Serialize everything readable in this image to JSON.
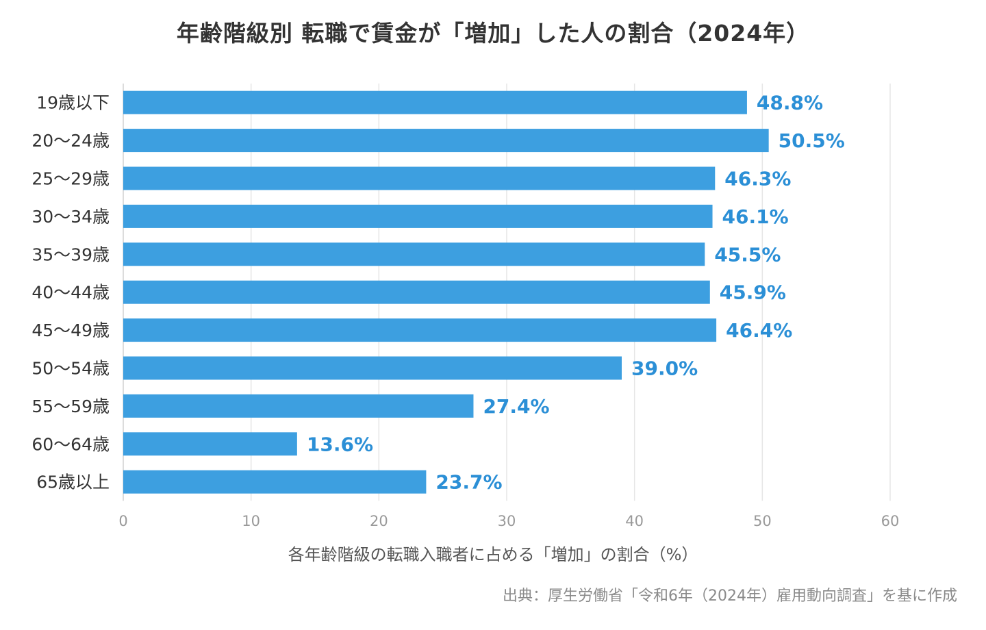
{
  "chart_data": {
    "type": "bar",
    "orientation": "horizontal",
    "title": "年齢階級別 転職で賃金が「増加」した人の割合（2024年）",
    "xlabel": "各年齢階級の転職入職者に占める「増加」の割合（%）",
    "ylabel": "",
    "source": "出典：厚生労働省「令和6年（2024年）雇用動向調査」を基に作成",
    "categories": [
      "19歳以下",
      "20〜24歳",
      "25〜29歳",
      "30〜34歳",
      "35〜39歳",
      "40〜44歳",
      "45〜49歳",
      "50〜54歳",
      "55〜59歳",
      "60〜64歳",
      "65歳以上"
    ],
    "values": [
      48.8,
      50.5,
      46.3,
      46.1,
      45.5,
      45.9,
      46.4,
      39.0,
      27.4,
      13.6,
      23.7
    ],
    "value_labels": [
      "48.8%",
      "50.5%",
      "46.3%",
      "46.1%",
      "45.5%",
      "45.9%",
      "46.4%",
      "39.0%",
      "27.4%",
      "13.6%",
      "23.7%"
    ],
    "xticks": [
      "0",
      "10",
      "20",
      "30",
      "40",
      "50",
      "60"
    ],
    "xlim": [
      0,
      60
    ],
    "grid": true,
    "legend": "none",
    "bar_color": "#3d9fe0",
    "label_color": "#2b8fd6"
  }
}
